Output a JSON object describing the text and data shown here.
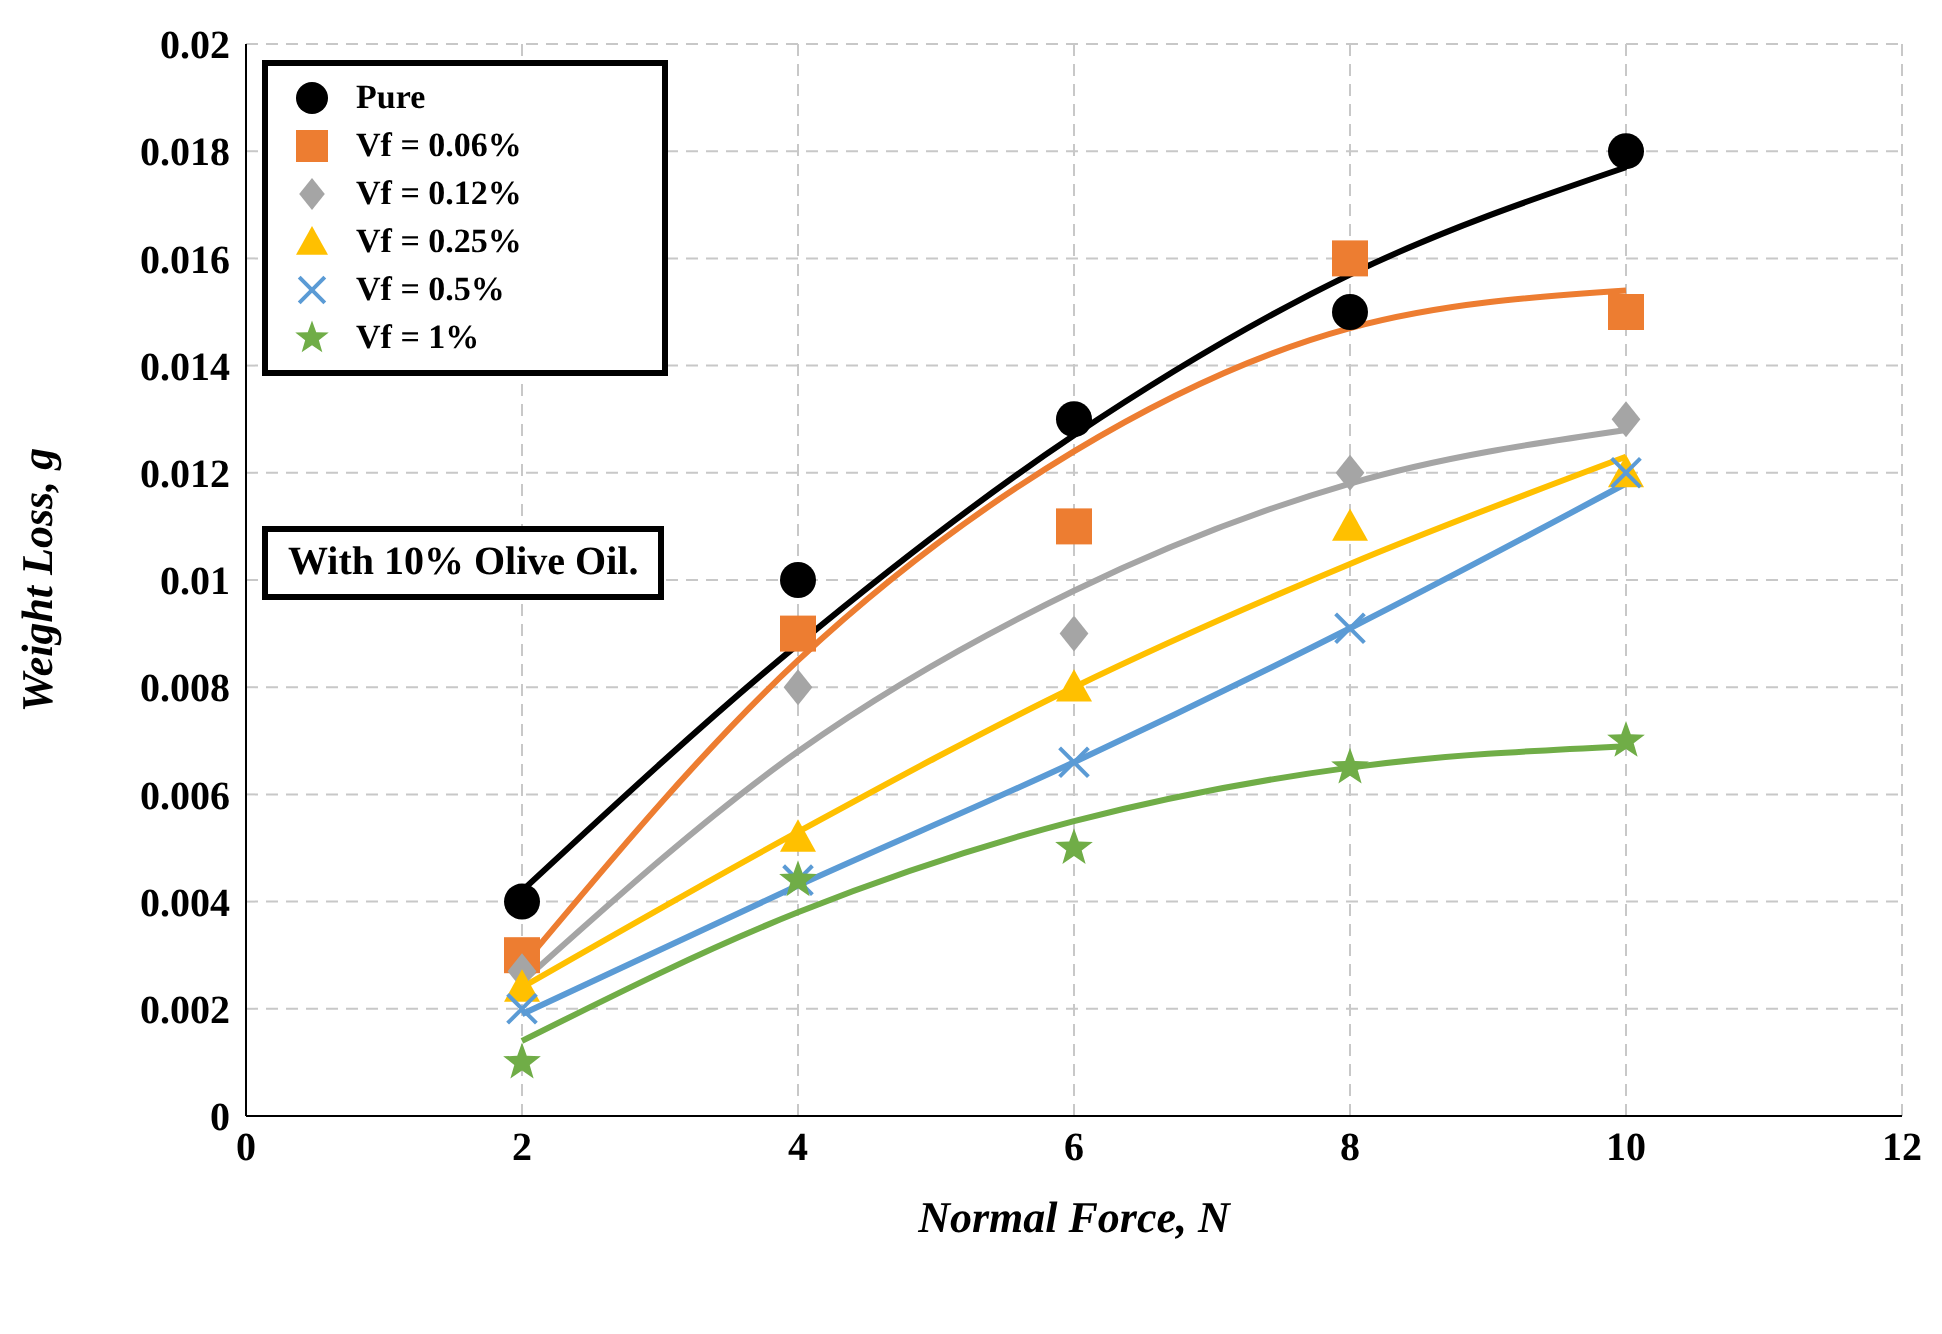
{
  "chart_data": {
    "type": "scatter",
    "xlabel": "Normal Force, N",
    "ylabel": "Weight Loss, g",
    "xlim": [
      0,
      12
    ],
    "xticks": [
      0,
      2,
      4,
      6,
      8,
      10,
      12
    ],
    "ylim": [
      0,
      0.02
    ],
    "yticks": [
      0,
      0.002,
      0.004,
      0.006,
      0.008,
      0.01,
      0.012,
      0.014,
      0.016,
      0.018,
      0.02
    ],
    "grid": true,
    "legend": "top left",
    "annotations": [
      "With 10% Olive Oil."
    ],
    "x": [
      2,
      4,
      6,
      8,
      10
    ],
    "series": [
      {
        "name": "Pure",
        "color": "#000000",
        "marker": "circle",
        "values": [
          0.004,
          0.01,
          0.013,
          0.015,
          0.018
        ]
      },
      {
        "name": "Vf = 0.06%",
        "color": "#ed7d31",
        "marker": "square",
        "values": [
          0.003,
          0.009,
          0.011,
          0.016,
          0.015
        ]
      },
      {
        "name": "Vf = 0.12%",
        "color": "#a5a5a5",
        "marker": "diamond",
        "values": [
          0.0027,
          0.008,
          0.009,
          0.012,
          0.013
        ]
      },
      {
        "name": "Vf = 0.25%",
        "color": "#ffc000",
        "marker": "triangle",
        "values": [
          0.0024,
          0.0052,
          0.008,
          0.011,
          0.012
        ]
      },
      {
        "name": "Vf = 0.5%",
        "color": "#5b9bd5",
        "marker": "cross",
        "values": [
          0.002,
          0.0044,
          0.0066,
          0.0091,
          0.012
        ]
      },
      {
        "name": "Vf = 1%",
        "color": "#70ad47",
        "marker": "star",
        "values": [
          0.001,
          0.0044,
          0.005,
          0.0065,
          0.007
        ]
      },
      {
        "type": "line",
        "color": "#000000",
        "x": [
          2,
          4,
          6,
          8,
          10
        ],
        "values": [
          0.0042,
          0.0088,
          0.0127,
          0.0157,
          0.0177
        ]
      },
      {
        "type": "line",
        "color": "#ed7d31",
        "x": [
          2,
          4,
          6,
          8,
          10
        ],
        "values": [
          0.0028,
          0.0085,
          0.0124,
          0.0147,
          0.0154
        ]
      },
      {
        "type": "line",
        "color": "#a5a5a5",
        "x": [
          2,
          4,
          6,
          8,
          10
        ],
        "values": [
          0.0025,
          0.0068,
          0.0098,
          0.0118,
          0.0128
        ]
      },
      {
        "type": "line",
        "color": "#ffc000",
        "x": [
          2,
          4,
          6,
          8,
          10
        ],
        "values": [
          0.0024,
          0.0053,
          0.008,
          0.0103,
          0.0123
        ]
      },
      {
        "type": "line",
        "color": "#5b9bd5",
        "x": [
          2,
          4,
          6,
          8,
          10
        ],
        "values": [
          0.0019,
          0.0043,
          0.0066,
          0.0091,
          0.0118
        ]
      },
      {
        "type": "line",
        "color": "#70ad47",
        "x": [
          2,
          4,
          6,
          8,
          10
        ],
        "values": [
          0.0014,
          0.0038,
          0.0055,
          0.0065,
          0.0069
        ]
      }
    ]
  }
}
